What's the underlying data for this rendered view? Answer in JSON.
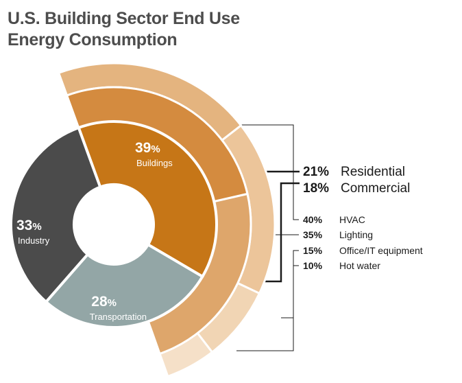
{
  "title_lines": [
    "U.S. Building Sector End Use",
    "Energy Consumption"
  ],
  "colors": {
    "buildings": "#c67617",
    "industry": "#4b4b4b",
    "transportation": "#93a6a6",
    "residential": "#d48b3f",
    "commercial": "#dea66b",
    "hvac": "#e4b47f",
    "lighting": "#ecc59a",
    "office_it": "#f1d5b4",
    "hot_water": "#f5e0c8",
    "label_text": "#1a1a1a",
    "leader": "#1a1a1a",
    "title": "#4d4d4d"
  },
  "chart_data": {
    "type": "pie",
    "rings": [
      {
        "level": "sector",
        "slices": [
          {
            "name": "Buildings",
            "value": 39,
            "label": "39%"
          },
          {
            "name": "Transportation",
            "value": 28,
            "label": "28%"
          },
          {
            "name": "Industry",
            "value": 33,
            "label": "33%"
          }
        ]
      },
      {
        "level": "building type",
        "parent": "Buildings",
        "slices": [
          {
            "name": "Residential",
            "value": 21,
            "label": "21%"
          },
          {
            "name": "Commercial",
            "value": 18,
            "label": "18%"
          }
        ]
      },
      {
        "level": "end use",
        "parent": "Buildings",
        "slices": [
          {
            "name": "HVAC",
            "value": 40,
            "label": "40%"
          },
          {
            "name": "Lighting",
            "value": 35,
            "label": "35%"
          },
          {
            "name": "Office/IT equipment",
            "value": 15,
            "label": "15%"
          },
          {
            "name": "Hot water",
            "value": 10,
            "label": "10%"
          }
        ]
      }
    ]
  }
}
